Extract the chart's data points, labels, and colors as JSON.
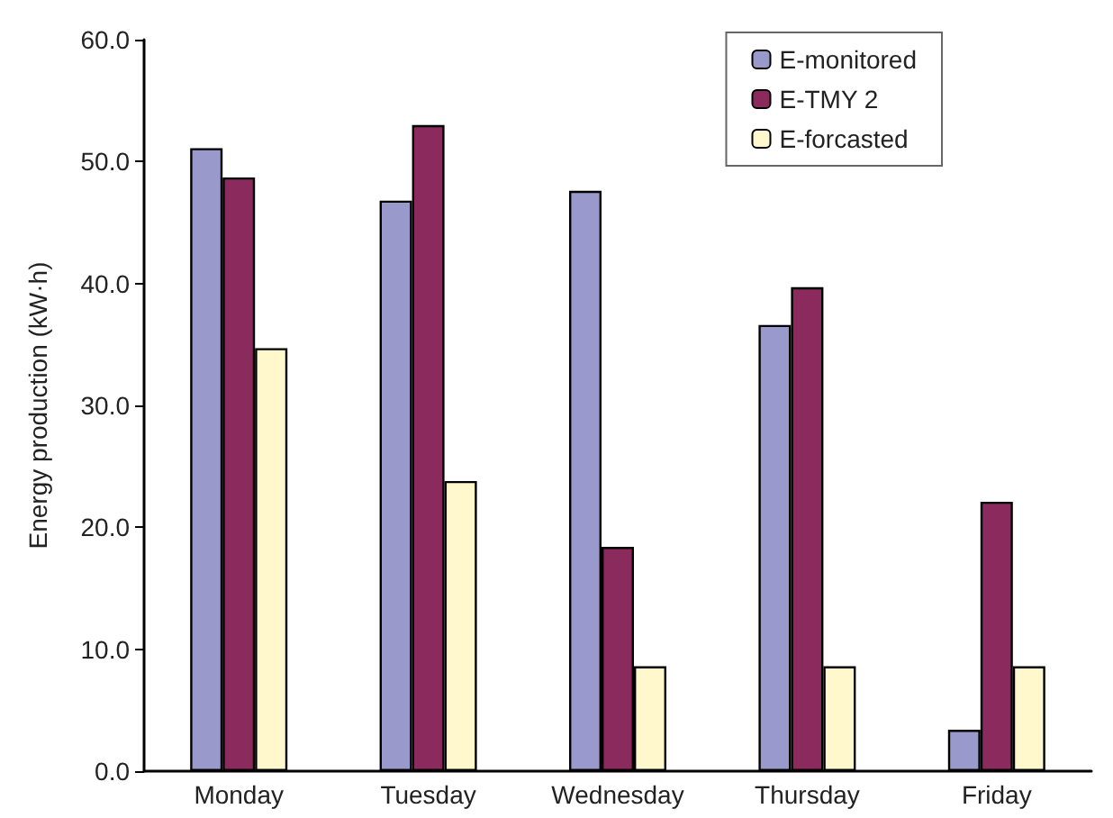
{
  "chart_data": {
    "type": "bar",
    "ylabel": "Energy production (kW·h)",
    "categories": [
      "Monday",
      "Tuesday",
      "Wednesday",
      "Thursday",
      "Friday"
    ],
    "series": [
      {
        "name": "E-monitored",
        "color": "#9999cc",
        "values": [
          51.1,
          46.8,
          47.6,
          36.6,
          3.4
        ]
      },
      {
        "name": "E-TMY 2",
        "color": "#8b2a5c",
        "values": [
          48.7,
          53.0,
          18.4,
          39.7,
          22.1
        ]
      },
      {
        "name": "E-forcasted",
        "color": "#fff8cc",
        "values": [
          34.7,
          23.8,
          8.6,
          8.6,
          8.6
        ]
      }
    ],
    "ylim": [
      0,
      60
    ],
    "yticks": [
      {
        "value": 0,
        "label": "0.0"
      },
      {
        "value": 10,
        "label": "10.0"
      },
      {
        "value": 20,
        "label": "20.0"
      },
      {
        "value": 30,
        "label": "30.0"
      },
      {
        "value": 40,
        "label": "40.0"
      },
      {
        "value": 50,
        "label": "50.0"
      },
      {
        "value": 60,
        "label": "60.0"
      }
    ],
    "grid": false,
    "legend": "top right"
  }
}
